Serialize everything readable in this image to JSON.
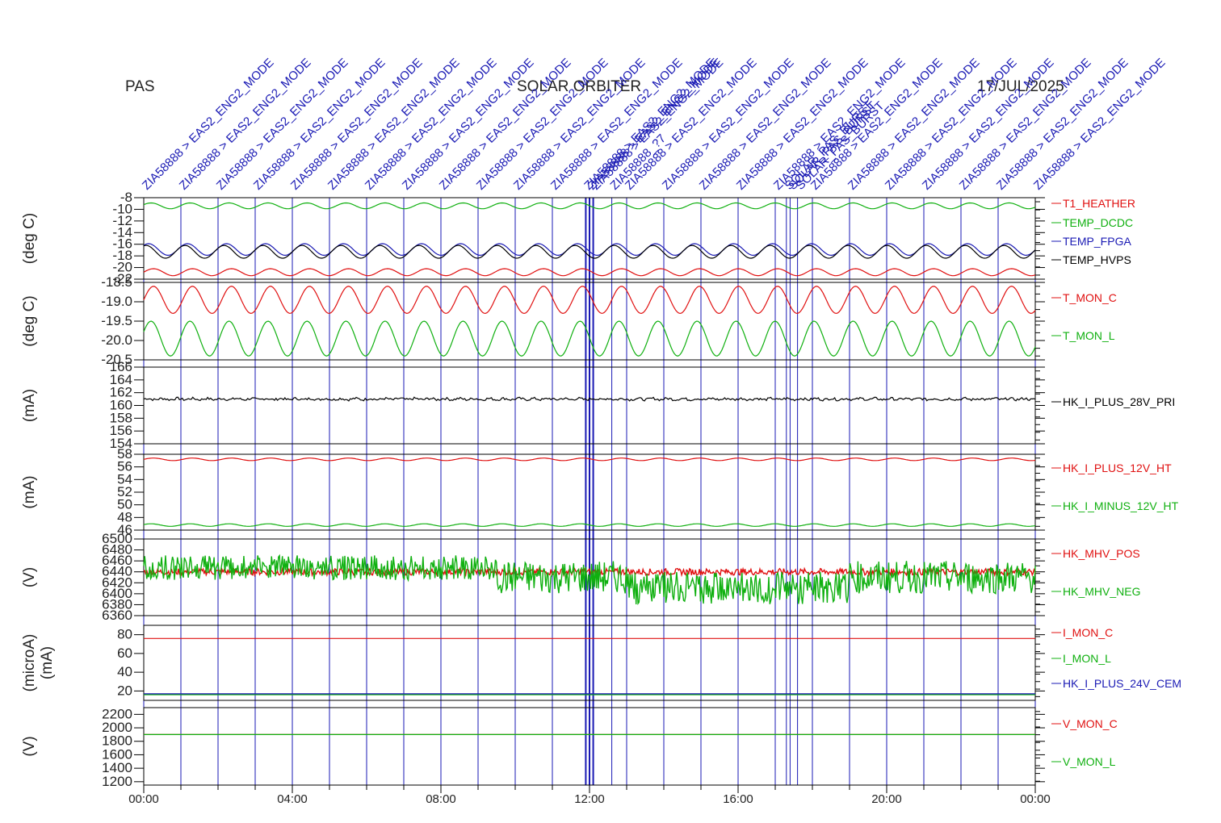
{
  "header": {
    "left": "PAS",
    "center": "SOLAR ORBITER",
    "right": "17/JUL/2025"
  },
  "colors": {
    "red": "#e01010",
    "green": "#10b010",
    "blue": "#1a1ab4",
    "black": "#000000",
    "axis": "#000000"
  },
  "x_axis": {
    "ticks": [
      "00:00",
      "04:00",
      "08:00",
      "12:00",
      "16:00",
      "20:00",
      "00:00"
    ]
  },
  "events": {
    "label_main": "ZIA58888 > EAS2_ENG2_MODE",
    "label_alt": "SOLAR_PAS_BURST",
    "label_misc": "ZIA58888_?7",
    "times_h": [
      0,
      1,
      2,
      3,
      4,
      5,
      6,
      7,
      8,
      9,
      10,
      11,
      11.9,
      12.0,
      12.1,
      12.6,
      13,
      14,
      15,
      16,
      17,
      17.3,
      17.4,
      17.6,
      18,
      19,
      20,
      21,
      22,
      23,
      24
    ]
  },
  "chart_data": [
    {
      "type": "line",
      "ylabel": "(deg C)",
      "yticks": [
        "-8",
        "-10",
        "-12",
        "-14",
        "-16",
        "-18",
        "-20",
        "-22"
      ],
      "ylim": [
        -22,
        -8
      ],
      "series": [
        {
          "name": "T1_HEATHER",
          "color": "red",
          "mean": -20.8,
          "amp": 0.6,
          "period_h": 1.05
        },
        {
          "name": "TEMP_DCDC",
          "color": "green",
          "mean": -9.4,
          "amp": 0.5,
          "period_h": 1.05
        },
        {
          "name": "TEMP_FPGA",
          "color": "blue",
          "mean": -16.9,
          "amp": 1.0,
          "period_h": 1.05
        },
        {
          "name": "TEMP_HVPS",
          "color": "black",
          "mean": -17.3,
          "amp": 1.1,
          "period_h": 1.05
        }
      ]
    },
    {
      "type": "line",
      "ylabel": "(deg C)",
      "yticks": [
        "-18.5",
        "-19.0",
        "-19.5",
        "-20.0",
        "-20.5"
      ],
      "ylim": [
        -20.5,
        -18.5
      ],
      "series": [
        {
          "name": "T_MON_C",
          "color": "red",
          "mean": -18.95,
          "amp": 0.35,
          "period_h": 1.05
        },
        {
          "name": "T_MON_L",
          "color": "green",
          "mean": -19.95,
          "amp": 0.45,
          "period_h": 1.05
        }
      ]
    },
    {
      "type": "line",
      "ylabel": "(mA)",
      "yticks": [
        "166",
        "164",
        "162",
        "160",
        "158",
        "156",
        "154"
      ],
      "ylim": [
        154,
        166
      ],
      "series": [
        {
          "name": "HK_I_PLUS_28V_PRI",
          "color": "black",
          "mean": 161.0,
          "amp": 0.1,
          "period_h": 0.4
        }
      ]
    },
    {
      "type": "line",
      "ylabel": "(mA)",
      "yticks": [
        "58",
        "56",
        "54",
        "52",
        "50",
        "48",
        "46"
      ],
      "ylim": [
        46,
        58
      ],
      "series": [
        {
          "name": "HK_I_PLUS_12V_HT",
          "color": "red",
          "mean": 57.2,
          "amp": 0.2,
          "period_h": 1.05
        },
        {
          "name": "HK_I_MINUS_12V_HT",
          "color": "green",
          "mean": 46.8,
          "amp": 0.2,
          "period_h": 1.05
        }
      ]
    },
    {
      "type": "area",
      "ylabel": "(V)",
      "yticks": [
        "6500",
        "6480",
        "6460",
        "6440",
        "6420",
        "6400",
        "6380",
        "6360"
      ],
      "ylim": [
        6360,
        6500
      ],
      "series": [
        {
          "name": "HK_MHV_POS",
          "color": "red",
          "mean": 6440,
          "amp": 6
        },
        {
          "name": "HK_MHV_NEG",
          "color": "green",
          "mean": 6430,
          "amp": 30
        }
      ]
    },
    {
      "type": "line",
      "ylabel": "(microA)",
      "ylabel2": "(mA)",
      "yticks": [
        "80",
        "60",
        "40",
        "20"
      ],
      "ylim": [
        10,
        90
      ],
      "series": [
        {
          "name": "I_MON_C",
          "color": "red",
          "mean": 76,
          "amp": 0
        },
        {
          "name": "I_MON_L",
          "color": "green",
          "mean": 16,
          "amp": 0
        },
        {
          "name": "HK_I_PLUS_24V_CEM",
          "color": "blue",
          "mean": 17,
          "amp": 0
        }
      ]
    },
    {
      "type": "line",
      "ylabel": "(V)",
      "yticks": [
        "2200",
        "2000",
        "1800",
        "1600",
        "1400",
        "1200"
      ],
      "ylim": [
        1150,
        2300
      ],
      "series": [
        {
          "name": "V_MON_C",
          "color": "red",
          "mean": 1900,
          "amp": 0
        },
        {
          "name": "V_MON_L",
          "color": "green",
          "mean": 1900,
          "amp": 0
        }
      ]
    }
  ]
}
